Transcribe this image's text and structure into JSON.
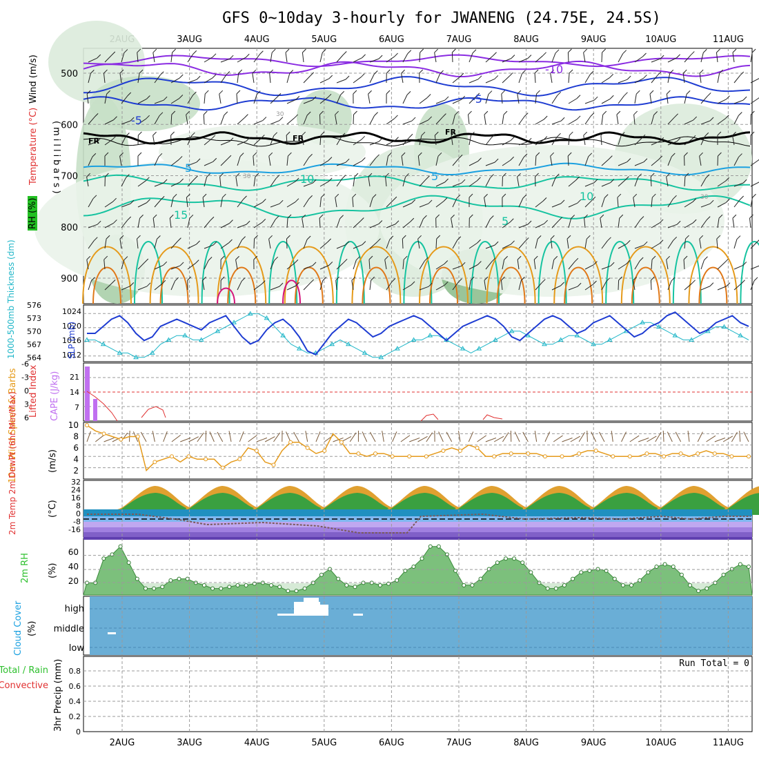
{
  "title": "GFS 0~10day 3-hourly for JWANENG (24.75E, 24.5S)",
  "date_labels": [
    "2AUG",
    "3AUG",
    "4AUG",
    "5AUG",
    "6AUG",
    "7AUG",
    "8AUG",
    "9AUG",
    "10AUG",
    "11AUG"
  ],
  "colors": {
    "frame": "#000000",
    "grid": "#9a9a9a",
    "purple": "#8a2be2",
    "blue": "#1e3cd2",
    "cyan": "#1aa0e0",
    "teal": "#16c3a0",
    "orange": "#e59a1a",
    "black": "#000000",
    "slp": "#1e3cd2",
    "thickness": "#1fb6c8",
    "lifted": "#e03030",
    "cape": "#c070f0",
    "wind": "#e59a1a",
    "barb": "#7a5a3a",
    "rh": "#2ec02e",
    "cloud": "#6aaed6",
    "precip_green": "#2ec02e",
    "precip_red": "#e03030"
  },
  "panels": {
    "upper": {
      "y_ticks": [
        "500",
        "600",
        "700",
        "800",
        "900"
      ],
      "label_wind": "Wind (m/s)",
      "label_temp": "Temperature (°C)",
      "label_rh": "RH (%)",
      "label_mb": "(millibars)",
      "contour_labels": [
        "-10",
        "-5",
        "-5",
        "5",
        "5",
        "10",
        "10",
        "15",
        "5",
        "FR",
        "FR",
        "FR",
        "30",
        "30",
        "30"
      ]
    },
    "slp": {
      "label_thick": "1000-500mb Thickness (dm)",
      "label_slp": "SLP (mb)",
      "left_ticks": [
        "576",
        "573",
        "570",
        "567",
        "564"
      ],
      "right_ticks": [
        "1024",
        "1020",
        "1016",
        "1012"
      ]
    },
    "cape": {
      "label_li": "Lifted Index",
      "label_cape": "CAPE (J/kg)",
      "left_ticks": [
        "-6",
        "-3",
        "0",
        "3",
        "6"
      ],
      "right_ticks": [
        "21",
        "14",
        "7"
      ]
    },
    "wind": {
      "label": "10m Wind Speed & Barbs",
      "label_unit": "(m/s)",
      "ticks": [
        "10",
        "8",
        "6",
        "4",
        "2"
      ]
    },
    "temp": {
      "label": "2m Temp 2m DewPt (6hr Min/Max)",
      "label_unit": "(°C)",
      "ticks": [
        "32",
        "24",
        "16",
        "8",
        "0",
        "-8",
        "-16"
      ]
    },
    "rh2m": {
      "label": "2m RH",
      "label_unit": "(%)",
      "ticks": [
        "60",
        "40",
        "20"
      ]
    },
    "cloud": {
      "label": "Cloud Cover",
      "label_unit": "(%)",
      "levels": [
        "high",
        "middle",
        "low"
      ]
    },
    "precip": {
      "label_green": "Total / Rain",
      "label_red": "Convective",
      "label_axis": "3hr Precip (mm)",
      "ticks": [
        "0.8",
        "0.6",
        "0.4",
        "0.2",
        "0"
      ],
      "run_total": "Run Total = 0"
    }
  },
  "chart_data": [
    {
      "type": "line",
      "title": "SLP (mb)",
      "series": [
        {
          "name": "SLP (mb)",
          "values": [
            1018,
            1018,
            1020,
            1022,
            1023,
            1021,
            1018,
            1016,
            1017,
            1020,
            1021,
            1022,
            1021,
            1020,
            1019,
            1021,
            1022,
            1023,
            1020,
            1017,
            1015,
            1016,
            1019,
            1021,
            1022,
            1020,
            1017,
            1013,
            1012,
            1015,
            1018,
            1020,
            1022,
            1021,
            1019,
            1017,
            1018,
            1020,
            1021,
            1022,
            1023,
            1022,
            1020,
            1018,
            1016,
            1018,
            1020,
            1021,
            1022,
            1023,
            1022,
            1020,
            1017,
            1016,
            1018,
            1020,
            1022,
            1023,
            1022,
            1020,
            1018,
            1019,
            1021,
            1022,
            1023,
            1021,
            1019,
            1017,
            1018,
            1020,
            1021,
            1023,
            1024,
            1022,
            1020,
            1018,
            1019,
            1021,
            1022,
            1023,
            1021,
            1020
          ]
        }
      ],
      "ylim": [
        1010,
        1026
      ]
    },
    {
      "type": "line",
      "title": "1000-500mb Thickness (dm)",
      "series": [
        {
          "name": "1000-500mb Thickness (dm)",
          "values": [
            568,
            568,
            567,
            566,
            565,
            565,
            564,
            564,
            565,
            567,
            568,
            569,
            569,
            568,
            568,
            569,
            570,
            571,
            572,
            573,
            574,
            574,
            573,
            571,
            569,
            567,
            566,
            565,
            565,
            566,
            567,
            568,
            567,
            566,
            565,
            564,
            564,
            565,
            566,
            567,
            568,
            568,
            569,
            569,
            568,
            567,
            566,
            565,
            566,
            567,
            568,
            569,
            570,
            570,
            569,
            568,
            567,
            567,
            568,
            569,
            569,
            568,
            567,
            567,
            568,
            569,
            570,
            571,
            572,
            572,
            571,
            570,
            569,
            568,
            568,
            569,
            570,
            571,
            571,
            570,
            569,
            568
          ]
        }
      ],
      "ylim": [
        563,
        576
      ]
    },
    {
      "type": "line",
      "title": "10m Wind Speed",
      "series": [
        {
          "name": "10m Wind Speed",
          "values": [
            9.5,
            8.5,
            8,
            7.5,
            7,
            7.5,
            7.5,
            1.5,
            3,
            3.5,
            4,
            3,
            4,
            3.5,
            3.5,
            3.5,
            2,
            3,
            3.5,
            5.5,
            5,
            3,
            2.5,
            5,
            6.5,
            6.5,
            5.5,
            4.5,
            5,
            8,
            6.5,
            4.5,
            4.5,
            4,
            4.5,
            4.5,
            4,
            4,
            4,
            4,
            4,
            4.5,
            5,
            5.5,
            5,
            6,
            5.5,
            4,
            4,
            4.5,
            4.5,
            4.5,
            4.5,
            4.5,
            4,
            4,
            4,
            4,
            4.5,
            5,
            5,
            4.5,
            4,
            4,
            4,
            4,
            4.5,
            4.5,
            4,
            4.5,
            4.5,
            4,
            4.5,
            5,
            4.5,
            4.5,
            4,
            4,
            4
          ]
        }
      ],
      "ylim": [
        0,
        10
      ]
    },
    {
      "type": "area",
      "title": "2m RH",
      "series": [
        {
          "name": "2m RH",
          "values": [
            25,
            25,
            55,
            60,
            70,
            50,
            30,
            18,
            18,
            20,
            28,
            30,
            30,
            25,
            22,
            18,
            18,
            20,
            22,
            22,
            24,
            25,
            22,
            20,
            15,
            15,
            18,
            25,
            35,
            42,
            30,
            22,
            20,
            25,
            25,
            22,
            24,
            28,
            40,
            45,
            55,
            70,
            70,
            60,
            40,
            22,
            22,
            30,
            42,
            50,
            55,
            55,
            50,
            38,
            25,
            18,
            18,
            22,
            30,
            38,
            40,
            42,
            40,
            30,
            22,
            22,
            28,
            38,
            45,
            48,
            45,
            35,
            22,
            15,
            18,
            25,
            35,
            42,
            48,
            45
          ]
        }
      ],
      "ylim": [
        10,
        80
      ]
    }
  ]
}
